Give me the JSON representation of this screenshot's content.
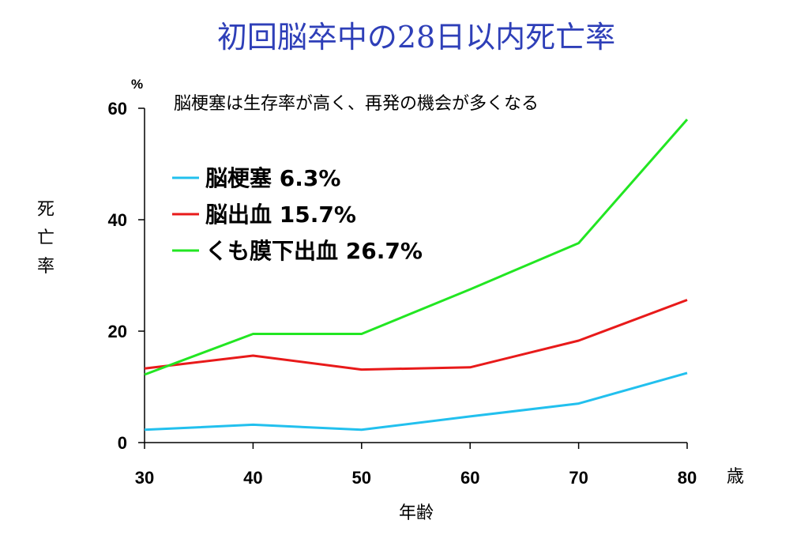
{
  "chart_data": {
    "type": "line",
    "title": "初回脳卒中の28日以内死亡率",
    "subtitle": "脳梗塞は生存率が高く、再発の機会が多くなる",
    "xlabel": "年齢",
    "x_unit": "歳",
    "ylabel": "死亡率",
    "y_unit": "%",
    "x": [
      30,
      40,
      50,
      60,
      70,
      80
    ],
    "xlim": [
      30,
      80
    ],
    "ylim": [
      0,
      60
    ],
    "xticks": [
      "30",
      "40",
      "50",
      "60",
      "70",
      "80"
    ],
    "yticks": [
      "0",
      "20",
      "40",
      "60"
    ],
    "grid": false,
    "legend_position": "top-left",
    "series": [
      {
        "name": "脳梗塞",
        "label": "脳梗塞 6.3%",
        "color": "#22C0EE",
        "values": [
          2.3,
          3.2,
          2.3,
          4.7,
          7.0,
          12.5
        ]
      },
      {
        "name": "脳出血",
        "label": "脳出血 15.7%",
        "color": "#E81A1A",
        "values": [
          13.3,
          15.6,
          13.1,
          13.5,
          18.3,
          25.6
        ]
      },
      {
        "name": "くも膜下出血",
        "label": "くも膜下出血 26.7%",
        "color": "#22E622",
        "values": [
          12.2,
          19.5,
          19.5,
          27.5,
          35.8,
          58.0
        ]
      }
    ]
  }
}
